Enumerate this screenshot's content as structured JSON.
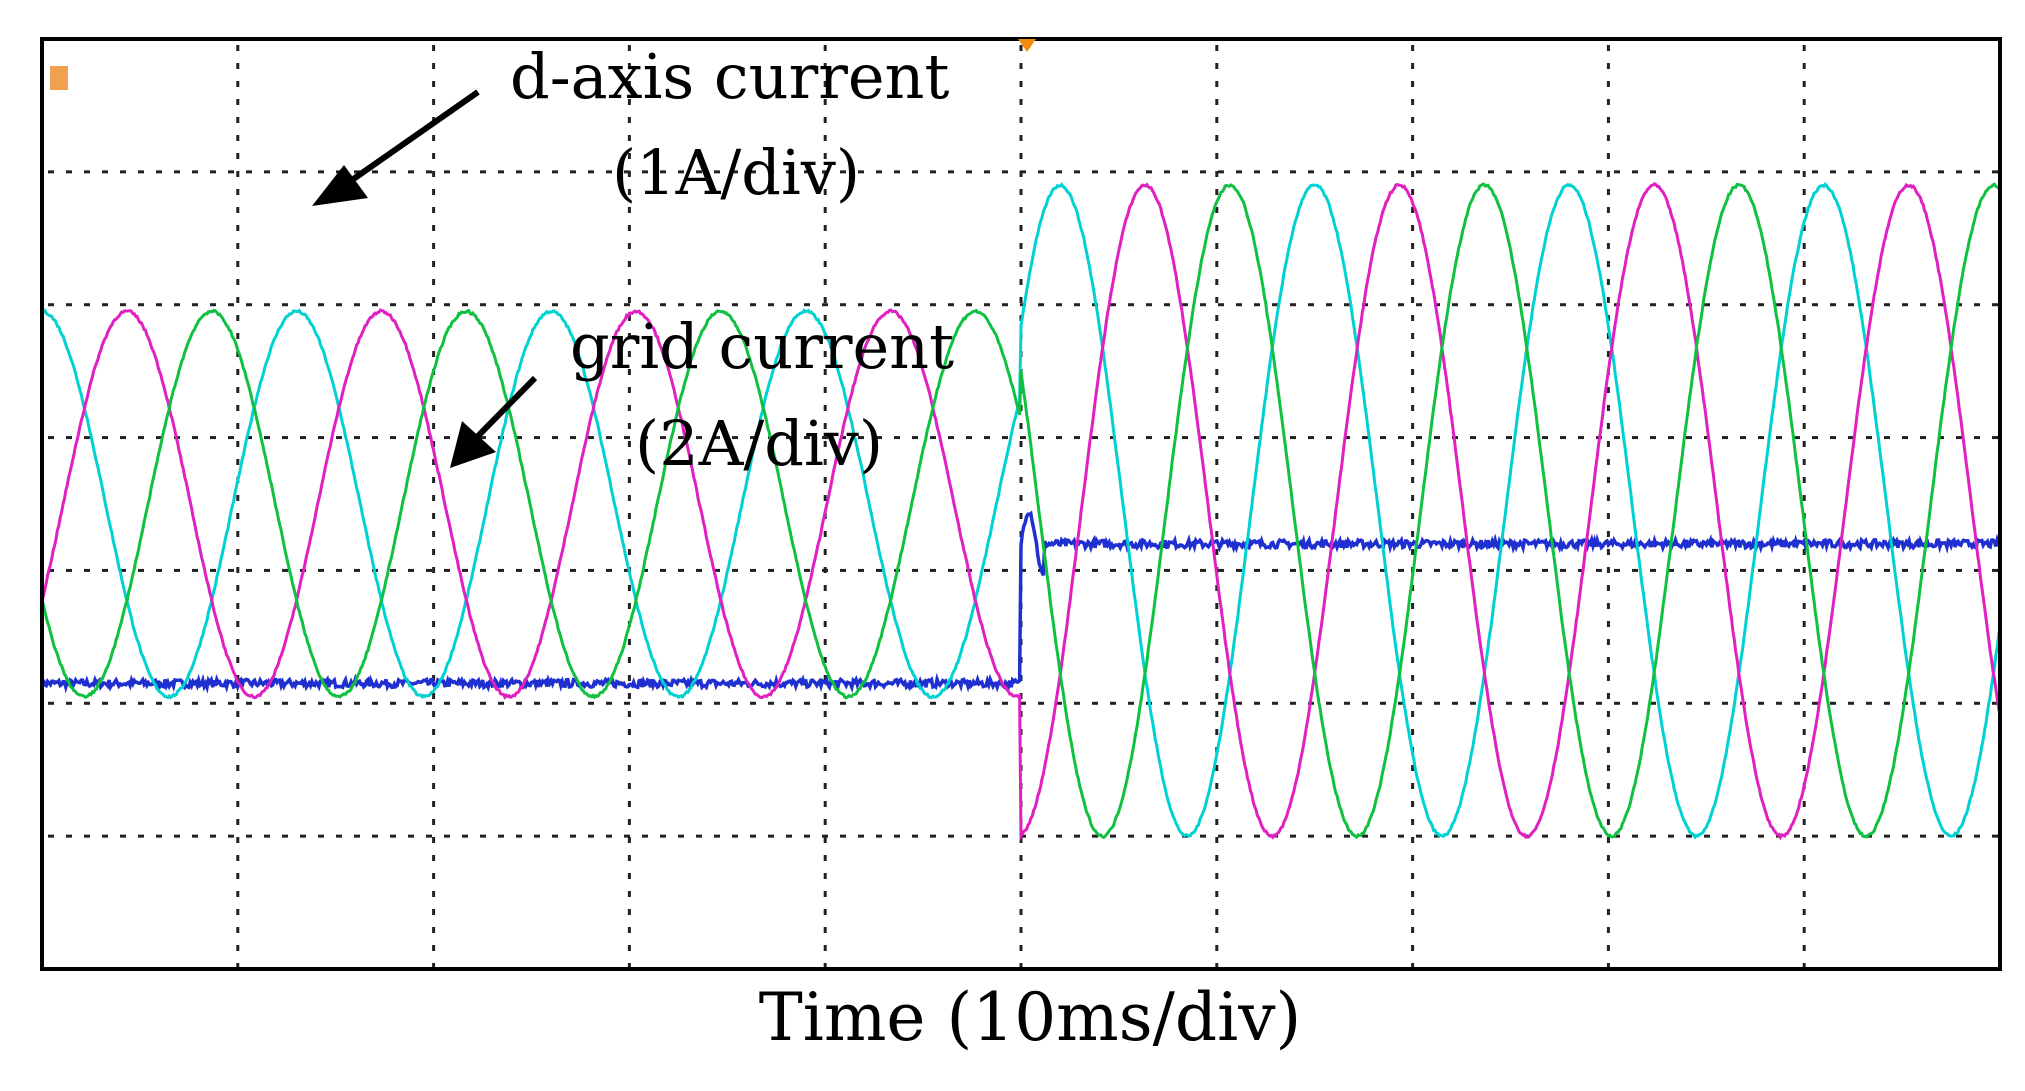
{
  "chart_data": {
    "type": "line",
    "annotations": {
      "d_axis": [
        "d-axis current",
        "(1A/div)"
      ],
      "grid": [
        "grid current",
        "(2A/div)"
      ]
    },
    "xlabel": "Time (10ms/div)",
    "x_divisions": 10,
    "y_divisions": 7,
    "grid": true,
    "step_time_div": 5.0,
    "series": [
      {
        "color": "#1f2fd0",
        "before": {
          "level_div": -1.35
        },
        "after": {
          "level_div": -0.3
        }
      },
      {
        "color": "#00d2d2",
        "before": {
          "amplitude_div": 1.45,
          "offset_div": 0.0,
          "period_div": 1.3,
          "phase_deg": 90
        },
        "after": {
          "amplitude_div": 2.45,
          "offset_div": -0.05,
          "period_div": 1.3,
          "phase_deg": 90
        }
      },
      {
        "color": "#e020c0",
        "before": {
          "amplitude_div": 1.45,
          "offset_div": 0.0,
          "period_div": 1.3,
          "phase_deg": -30
        },
        "after": {
          "amplitude_div": 2.45,
          "offset_div": -0.05,
          "period_div": 1.3,
          "phase_deg": -30
        }
      },
      {
        "color": "#10c040",
        "before": {
          "amplitude_div": 1.45,
          "offset_div": 0.0,
          "period_div": 1.3,
          "phase_deg": 210
        },
        "after": {
          "amplitude_div": 2.45,
          "offset_div": -0.05,
          "period_div": 1.3,
          "phase_deg": 210
        }
      }
    ]
  }
}
